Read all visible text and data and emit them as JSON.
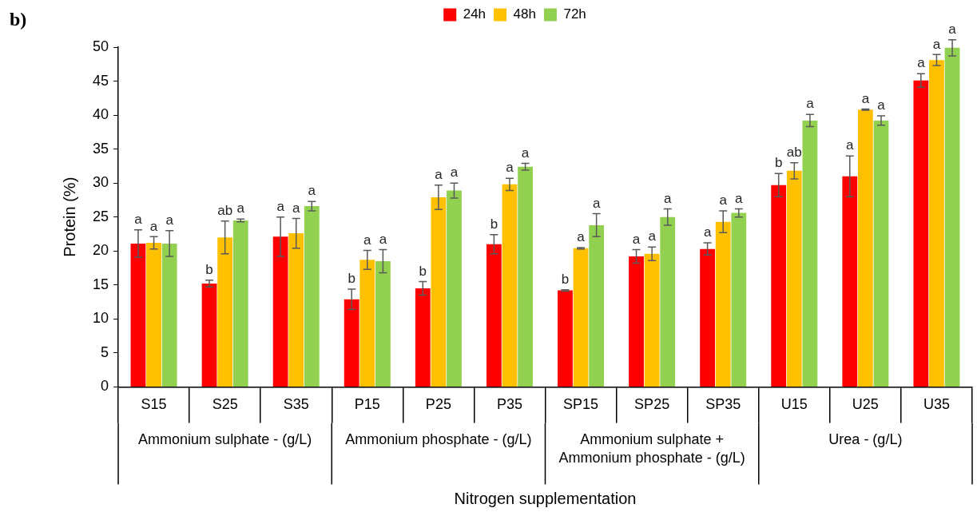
{
  "chart_data": {
    "type": "bar",
    "xlabel": "Nitrogen supplementation",
    "ylabel": "Protein (%)",
    "categories": [
      "S15",
      "S25",
      "S35",
      "P15",
      "P25",
      "P35",
      "SP15",
      "SP25",
      "SP35",
      "U15",
      "U25",
      "U35"
    ],
    "series": [
      {
        "name": "24h",
        "color": "#ff0000",
        "values": [
          21.1,
          15.2,
          22.1,
          12.9,
          14.5,
          21,
          14.2,
          19.2,
          20.3,
          29.7,
          31,
          45.1
        ],
        "errors": [
          2,
          0.5,
          2.9,
          1.5,
          1,
          1.4,
          0.1,
          1,
          0.9,
          1.7,
          3,
          1
        ],
        "value_labels": [
          "a",
          "b",
          "a",
          "b",
          "b",
          "b",
          "b",
          "a",
          "a",
          "b",
          "a",
          "a"
        ]
      },
      {
        "name": "48h",
        "color": "#ffc000",
        "values": [
          21.2,
          22,
          22.6,
          18.7,
          27.9,
          29.8,
          20.4,
          19.6,
          24.3,
          31.8,
          40.8,
          48.1
        ],
        "errors": [
          0.9,
          2.4,
          2.2,
          1.4,
          1.8,
          0.9,
          0.1,
          1,
          1.6,
          1.2,
          0.1,
          0.8
        ],
        "value_labels": [
          "a",
          "ab",
          "a",
          "a",
          "a",
          "a",
          "a",
          "a",
          "a",
          "ab",
          "a",
          "a"
        ]
      },
      {
        "name": "72h",
        "color": "#92d050",
        "values": [
          21.1,
          24.5,
          26.6,
          18.5,
          28.9,
          32.4,
          23.8,
          25,
          25.6,
          39.2,
          39.2,
          49.9
        ],
        "errors": [
          1.9,
          0.2,
          0.7,
          1.7,
          1.1,
          0.5,
          1.7,
          1.2,
          0.6,
          0.9,
          0.7,
          1.2
        ],
        "value_labels": [
          "a",
          "a",
          "a",
          "a",
          "a",
          "a",
          "a",
          "a",
          "a",
          "a",
          "a",
          "a"
        ]
      }
    ],
    "ylim": [
      0,
      50
    ],
    "yticks": [
      0,
      5,
      10,
      15,
      20,
      25,
      30,
      35,
      40,
      45,
      50
    ],
    "grid": false,
    "legend": "top",
    "annotations": [
      "b)",
      "Ammonium sulphate - (g/L)",
      "Ammonium phosphate - (g/L)",
      "Ammonium sulphate + Ammonium phosphate - (g/L)",
      "Urea - (g/L)"
    ]
  }
}
